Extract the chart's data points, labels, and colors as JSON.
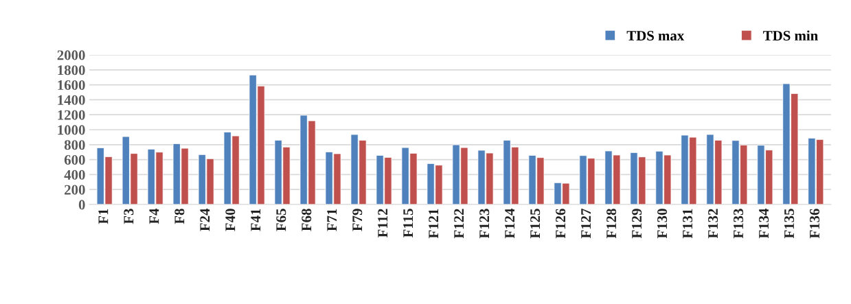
{
  "chart_data": {
    "type": "bar",
    "categories": [
      "F1",
      "F3",
      "F4",
      "F8",
      "F24",
      "F40",
      "F41",
      "F65",
      "F68",
      "F71",
      "F79",
      "F112",
      "F115",
      "F121",
      "F122",
      "F123",
      "F124",
      "F125",
      "F126",
      "F127",
      "F128",
      "F129",
      "F130",
      "F131",
      "F132",
      "F133",
      "F134",
      "F135",
      "F136"
    ],
    "series": [
      {
        "name": "TDS max",
        "color": "#4f81bd",
        "values": [
          758,
          908,
          740,
          813,
          667,
          969,
          1731,
          859,
          1193,
          703,
          936,
          657,
          761,
          547,
          798,
          725,
          859,
          657,
          291,
          654,
          716,
          694,
          713,
          927,
          936,
          856,
          792,
          1615,
          887
        ]
      },
      {
        "name": "TDS min",
        "color": "#c0504d",
        "values": [
          639,
          682,
          700,
          752,
          612,
          917,
          1584,
          768,
          1119,
          679,
          859,
          630,
          685,
          526,
          761,
          688,
          768,
          627,
          284,
          618,
          661,
          636,
          661,
          899,
          859,
          795,
          728,
          1483,
          869
        ]
      }
    ],
    "ylim": [
      0,
      2000
    ],
    "yticks": [
      0,
      200,
      400,
      600,
      800,
      1000,
      1200,
      1400,
      1600,
      1800,
      2000
    ],
    "grid": "y",
    "legend": "top right"
  }
}
